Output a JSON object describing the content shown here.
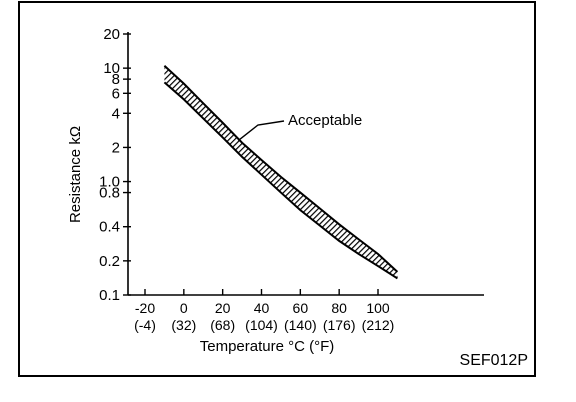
{
  "chart_data": {
    "type": "line",
    "title": "",
    "xlabel": "Temperature °C (°F)",
    "ylabel": "Resistance kΩ",
    "y_scale": "log",
    "xlim": [
      -30,
      135
    ],
    "ylim": [
      0.1,
      20
    ],
    "x_ticks": [
      {
        "value": -20,
        "label": "-20",
        "sublabel": "(-4)"
      },
      {
        "value": 0,
        "label": "0",
        "sublabel": "(32)"
      },
      {
        "value": 20,
        "label": "20",
        "sublabel": "(68)"
      },
      {
        "value": 40,
        "label": "40",
        "sublabel": "(104)"
      },
      {
        "value": 60,
        "label": "60",
        "sublabel": "(140)"
      },
      {
        "value": 80,
        "label": "80",
        "sublabel": "(176)"
      },
      {
        "value": 100,
        "label": "100",
        "sublabel": "(212)"
      }
    ],
    "y_ticks": [
      {
        "value": 20,
        "label": "20"
      },
      {
        "value": 10,
        "label": "10"
      },
      {
        "value": 8,
        "label": "8"
      },
      {
        "value": 6,
        "label": "6"
      },
      {
        "value": 4,
        "label": "4"
      },
      {
        "value": 2,
        "label": "2"
      },
      {
        "value": 1.0,
        "label": "1.0"
      },
      {
        "value": 0.8,
        "label": "0.8"
      },
      {
        "value": 0.4,
        "label": "0.4"
      },
      {
        "value": 0.2,
        "label": "0.2"
      },
      {
        "value": 0.1,
        "label": "0.1"
      }
    ],
    "series": [
      {
        "role": "upper-limit",
        "x": [
          -10,
          0,
          10,
          20,
          30,
          40,
          50,
          60,
          70,
          80,
          90,
          100,
          110
        ],
        "y": [
          10.5,
          7.3,
          4.9,
          3.3,
          2.2,
          1.55,
          1.1,
          0.8,
          0.58,
          0.42,
          0.31,
          0.23,
          0.16
        ]
      },
      {
        "role": "lower-limit",
        "x": [
          -10,
          0,
          10,
          20,
          30,
          40,
          50,
          60,
          70,
          80,
          90,
          100,
          110
        ],
        "y": [
          7.5,
          5.3,
          3.6,
          2.45,
          1.65,
          1.15,
          0.8,
          0.56,
          0.41,
          0.3,
          0.23,
          0.18,
          0.14
        ]
      }
    ],
    "annotations": [
      {
        "text": "Acceptable",
        "x": 27,
        "y": 2.3
      }
    ],
    "grid": false,
    "figure_code": "SEF012P"
  }
}
